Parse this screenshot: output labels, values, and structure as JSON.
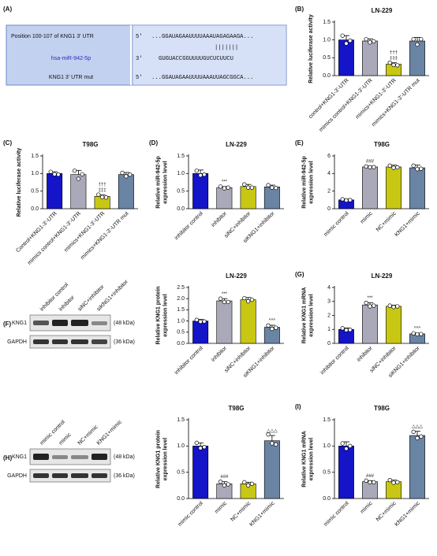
{
  "chart_data": [
    {
      "type": "bar",
      "panel": "(B)",
      "title": "LN-229",
      "ylabel": [
        "Relative luciferase activity"
      ],
      "categories": [
        "control+KNG1-3'-UTR",
        "mimics control+KNG1-3'-UTR",
        "mimics+KNG1-3'-UTR",
        "mimics+KNG1-3'-UTR mut"
      ],
      "values": [
        1.0,
        0.97,
        0.32,
        0.97
      ],
      "errors": [
        0.12,
        0.06,
        0.04,
        0.1
      ],
      "points": [
        [
          1.12,
          0.9,
          0.98
        ],
        [
          1.02,
          0.93,
          0.96
        ],
        [
          0.36,
          0.3,
          0.29
        ],
        [
          1.02,
          0.87,
          1.02
        ]
      ],
      "annotations": [
        null,
        null,
        [
          "†††",
          "‡‡‡"
        ],
        null
      ],
      "colors": [
        "#1414c8",
        "#a9a9b9",
        "#c8c814",
        "#6a84a4"
      ],
      "ylim": [
        0,
        1.5
      ],
      "yticks": [
        {
          "value": 0,
          "label": "0.0"
        },
        0.5,
        {
          "value": 1,
          "label": "1.0"
        },
        1.5
      ]
    },
    {
      "type": "bar",
      "panel": "(C)",
      "title": "T98G",
      "ylabel": [
        "Relative luciferase activity"
      ],
      "categories": [
        "Control+KNG1-3'-UTR",
        "mimics control+KNG1-3'-UTR",
        "mimics+KNG1-3'-UTR",
        "mimics+KNG1-3'-UTR mut"
      ],
      "values": [
        1.0,
        0.97,
        0.35,
        0.97
      ],
      "errors": [
        0.05,
        0.12,
        0.04,
        0.06
      ],
      "points": [
        [
          1.05,
          0.98,
          0.97
        ],
        [
          1.08,
          0.85,
          0.98
        ],
        [
          0.4,
          0.33,
          0.32
        ],
        [
          1.02,
          0.92,
          0.97
        ]
      ],
      "annotations": [
        null,
        null,
        [
          "†††",
          "‡‡‡"
        ],
        null
      ],
      "colors": [
        "#1414c8",
        "#a9a9b9",
        "#c8c814",
        "#6a84a4"
      ],
      "ylim": [
        0,
        1.5
      ],
      "yticks": [
        {
          "value": 0,
          "label": "0.0"
        },
        0.5,
        {
          "value": 1,
          "label": "1.0"
        },
        1.5
      ]
    },
    {
      "type": "bar",
      "panel": "(D)",
      "title": "LN-229",
      "ylabel": [
        "Relative miR-942-5p",
        "expression level"
      ],
      "categories": [
        "inhibitor control",
        "inhibitor",
        "siNC+inhibitor",
        "siKNG1+inhibitor"
      ],
      "values": [
        1.0,
        0.6,
        0.63,
        0.62
      ],
      "errors": [
        0.1,
        0.03,
        0.06,
        0.05
      ],
      "points": [
        [
          1.08,
          0.95,
          0.97
        ],
        [
          0.63,
          0.58,
          0.6
        ],
        [
          0.69,
          0.6,
          0.6
        ],
        [
          0.67,
          0.6,
          0.59
        ]
      ],
      "annotations": [
        null,
        [
          "***"
        ],
        null,
        null
      ],
      "colors": [
        "#1414c8",
        "#a9a9b9",
        "#c8c814",
        "#6a84a4"
      ],
      "ylim": [
        0,
        1.5
      ],
      "yticks": [
        {
          "value": 0,
          "label": "0.0"
        },
        0.5,
        {
          "value": 1,
          "label": "1.0"
        },
        1.5
      ]
    },
    {
      "type": "bar",
      "panel": "(E)",
      "title": "T98G",
      "ylabel": [
        "Relative miR-942-5p",
        "expression level"
      ],
      "categories": [
        "mimic control",
        "mimic",
        "NC+mimic",
        "KNG1+mimic"
      ],
      "values": [
        1.0,
        4.75,
        4.75,
        4.65
      ],
      "errors": [
        0.1,
        0.1,
        0.2,
        0.3
      ],
      "points": [
        [
          1.07,
          0.95,
          0.98
        ],
        [
          4.8,
          4.72,
          4.73
        ],
        [
          4.9,
          4.65,
          4.7
        ],
        [
          4.9,
          4.5,
          4.55
        ]
      ],
      "annotations": [
        null,
        [
          "###"
        ],
        null,
        null
      ],
      "colors": [
        "#1414c8",
        "#a9a9b9",
        "#c8c814",
        "#6a84a4"
      ],
      "ylim": [
        0,
        6
      ],
      "yticks": [
        0,
        2,
        4,
        6
      ]
    },
    {
      "type": "bar",
      "title": "LN-229",
      "ylabel": [
        "Relative KNG1 protein",
        "expression level"
      ],
      "categories": [
        "inhibitor control",
        "inhibitor",
        "siNC+inhibitor",
        "siKNG1+inhibitor"
      ],
      "values": [
        1.0,
        1.9,
        1.95,
        0.72
      ],
      "errors": [
        0.07,
        0.1,
        0.1,
        0.09
      ],
      "points": [
        [
          1.05,
          0.97,
          0.98
        ],
        [
          2.0,
          1.85,
          1.85
        ],
        [
          2.02,
          1.88,
          1.95
        ],
        [
          0.8,
          0.65,
          0.7
        ]
      ],
      "annotations": [
        null,
        [
          "***"
        ],
        null,
        [
          "^^^"
        ]
      ],
      "colors": [
        "#1414c8",
        "#a9a9b9",
        "#c8c814",
        "#6a84a4"
      ],
      "ylim": [
        0,
        2.5
      ],
      "yticks": [
        {
          "value": 0,
          "label": "0.0"
        },
        0.5,
        {
          "value": 1,
          "label": "1.0"
        },
        1.5,
        {
          "value": 2,
          "label": "2.0"
        },
        2.5
      ]
    },
    {
      "type": "bar",
      "panel": "(G)",
      "title": "LN-229",
      "ylabel": [
        "Relative KNG1 mRNA",
        "expression level"
      ],
      "categories": [
        "inhibitor control",
        "inhibitor",
        "siNC+inhibitor",
        "siKNG1+inhibitor"
      ],
      "values": [
        1.0,
        2.75,
        2.65,
        0.68
      ],
      "errors": [
        0.1,
        0.15,
        0.08,
        0.05
      ],
      "points": [
        [
          1.08,
          0.95,
          0.97
        ],
        [
          2.9,
          2.65,
          2.7
        ],
        [
          2.7,
          2.6,
          2.65
        ],
        [
          0.72,
          0.65,
          0.67
        ]
      ],
      "annotations": [
        null,
        [
          "***"
        ],
        null,
        [
          "^^^"
        ]
      ],
      "colors": [
        "#1414c8",
        "#a9a9b9",
        "#c8c814",
        "#6a84a4"
      ],
      "ylim": [
        0,
        4
      ],
      "yticks": [
        0,
        1,
        2,
        3,
        4
      ]
    },
    {
      "type": "bar",
      "title": "T98G",
      "ylabel": [
        "Relative KNG1 protein",
        "expression level"
      ],
      "categories": [
        "mimic control",
        "mimic",
        "NC+mimic",
        "KNG1+mimic"
      ],
      "values": [
        1.0,
        0.28,
        0.28,
        1.1
      ],
      "errors": [
        0.06,
        0.04,
        0.03,
        0.1
      ],
      "points": [
        [
          1.06,
          0.96,
          0.98
        ],
        [
          0.32,
          0.25,
          0.27
        ],
        [
          0.31,
          0.25,
          0.28
        ],
        [
          1.22,
          1.05,
          1.03
        ]
      ],
      "annotations": [
        null,
        [
          "###"
        ],
        null,
        [
          "△△△"
        ]
      ],
      "colors": [
        "#1414c8",
        "#a9a9b9",
        "#c8c814",
        "#6a84a4"
      ],
      "ylim": [
        0,
        1.5
      ],
      "yticks": [
        {
          "value": 0,
          "label": "0.0"
        },
        0.5,
        {
          "value": 1,
          "label": "1.0"
        },
        1.5
      ]
    },
    {
      "type": "bar",
      "panel": "(I)",
      "title": "T98G",
      "ylabel": [
        "Relative KNG1 mRNA",
        "expression level"
      ],
      "categories": [
        "mimic control",
        "mimic",
        "NC+mimic",
        "KNG1+mimic"
      ],
      "values": [
        1.0,
        0.32,
        0.32,
        1.2
      ],
      "errors": [
        0.08,
        0.02,
        0.03,
        0.08
      ],
      "points": [
        [
          1.05,
          0.95,
          1.0
        ],
        [
          0.34,
          0.31,
          0.31
        ],
        [
          0.35,
          0.3,
          0.31
        ],
        [
          1.27,
          1.15,
          1.18
        ]
      ],
      "annotations": [
        null,
        [
          "###"
        ],
        null,
        [
          "△△△"
        ]
      ],
      "colors": [
        "#1414c8",
        "#a9a9b9",
        "#c8c814",
        "#6a84a4"
      ],
      "ylim": [
        0,
        1.5
      ],
      "yticks": [
        {
          "value": 0,
          "label": "0.0"
        },
        0.5,
        {
          "value": 1,
          "label": "1.0"
        },
        1.5
      ]
    }
  ],
  "figure": {
    "panel_a": {
      "label": "(A)",
      "row1": {
        "name": "Position 100-107 of KNG1 3' UTR",
        "end": "5'",
        "seq": "...GGAUAGAAUUUUAAAUAGAGAAGA..."
      },
      "pairs": "|||||||",
      "row2": {
        "name": "hsa-miR-942-5p",
        "end": "3'",
        "seq": "GUGUACCGGUUUUGUCUCUUCU"
      },
      "row3": {
        "name": "KNG1 3' UTR mut",
        "end": "5'",
        "seq": "...GGAUAGAAUUUUAAAUUAGCGGCA..."
      }
    },
    "blot_f": {
      "label": "(F)",
      "lanes": [
        "inhibitor control",
        "inhibitor",
        "siNC+inhibitor",
        "siKNG1+inhibitor"
      ],
      "rows": [
        "KNG1",
        "GAPDH"
      ],
      "sizes": [
        "(48 kDa)",
        "(36 kDa)"
      ]
    },
    "blot_h": {
      "label": "(H)",
      "lanes": [
        "mimic control",
        "mimic",
        "NC+mimic",
        "KNG1+mimic"
      ],
      "rows": [
        "KNG1",
        "GAPDH"
      ],
      "sizes": [
        "(48 kDa)",
        "(36 kDa)"
      ]
    }
  }
}
